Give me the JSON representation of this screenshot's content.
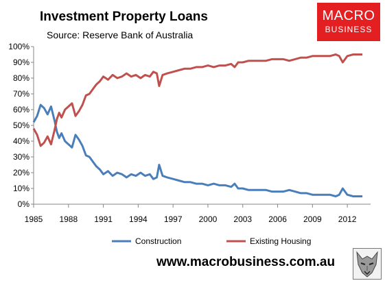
{
  "title": "Investment Property Loans",
  "subtitle": "Source: Reserve Bank of Australia",
  "logo": {
    "line1": "MACRO",
    "line2": "BUSINESS",
    "color": "#e41f22"
  },
  "website": "www.macrobusiness.com.au",
  "wolf_icon": "wolf-head-icon",
  "chart_data": {
    "type": "line",
    "xlim": [
      1985,
      2014
    ],
    "ylim": [
      0,
      100
    ],
    "x_ticks": [
      "1985",
      "1988",
      "1991",
      "1994",
      "1997",
      "2000",
      "2003",
      "2006",
      "2009",
      "2012"
    ],
    "y_ticks": [
      "0%",
      "10%",
      "20%",
      "30%",
      "40%",
      "50%",
      "60%",
      "70%",
      "80%",
      "90%",
      "100%"
    ],
    "grid": false,
    "legend": "bottom",
    "series": [
      {
        "name": "Construction",
        "color": "#4a7ebb",
        "x": [
          1985.0,
          1985.3,
          1985.6,
          1985.9,
          1986.2,
          1986.5,
          1986.8,
          1987.0,
          1987.2,
          1987.4,
          1987.7,
          1988.0,
          1988.3,
          1988.6,
          1988.9,
          1989.2,
          1989.5,
          1989.8,
          1990.1,
          1990.4,
          1990.7,
          1991.0,
          1991.4,
          1991.8,
          1992.2,
          1992.6,
          1993.0,
          1993.4,
          1993.8,
          1994.2,
          1994.6,
          1995.0,
          1995.3,
          1995.6,
          1995.8,
          1996.1,
          1996.5,
          1997.0,
          1997.5,
          1998.0,
          1998.5,
          1999.0,
          1999.5,
          2000.0,
          2000.5,
          2001.0,
          2001.5,
          2002.0,
          2002.3,
          2002.6,
          2003.0,
          2003.5,
          2004.0,
          2004.5,
          2005.0,
          2005.5,
          2006.0,
          2006.5,
          2007.0,
          2007.5,
          2008.0,
          2008.5,
          2009.0,
          2009.5,
          2010.0,
          2010.5,
          2011.0,
          2011.3,
          2011.6,
          2012.0,
          2012.5,
          2013.0,
          2013.3
        ],
        "values": [
          52,
          56,
          63,
          61,
          57,
          62,
          53,
          46,
          42,
          45,
          40,
          38,
          36,
          44,
          41,
          37,
          31,
          30,
          27,
          24,
          22,
          19,
          21,
          18,
          20,
          19,
          17,
          19,
          18,
          20,
          18,
          19,
          16,
          17,
          25,
          18,
          17,
          16,
          15,
          14,
          14,
          13,
          13,
          12,
          13,
          12,
          12,
          11,
          13,
          10,
          10,
          9,
          9,
          9,
          9,
          8,
          8,
          8,
          9,
          8,
          7,
          7,
          6,
          6,
          6,
          6,
          5,
          6,
          10,
          6,
          5,
          5,
          5
        ]
      },
      {
        "name": "Existing Housing",
        "color": "#c0504d",
        "x": [
          1985.0,
          1985.3,
          1985.6,
          1985.9,
          1986.2,
          1986.5,
          1986.8,
          1987.0,
          1987.2,
          1987.4,
          1987.7,
          1988.0,
          1988.3,
          1988.6,
          1988.9,
          1989.2,
          1989.5,
          1989.8,
          1990.1,
          1990.4,
          1990.7,
          1991.0,
          1991.4,
          1991.8,
          1992.2,
          1992.6,
          1993.0,
          1993.4,
          1993.8,
          1994.2,
          1994.6,
          1995.0,
          1995.3,
          1995.6,
          1995.8,
          1996.1,
          1996.5,
          1997.0,
          1997.5,
          1998.0,
          1998.5,
          1999.0,
          1999.5,
          2000.0,
          2000.5,
          2001.0,
          2001.5,
          2002.0,
          2002.3,
          2002.6,
          2003.0,
          2003.5,
          2004.0,
          2004.5,
          2005.0,
          2005.5,
          2006.0,
          2006.5,
          2007.0,
          2007.5,
          2008.0,
          2008.5,
          2009.0,
          2009.5,
          2010.0,
          2010.5,
          2011.0,
          2011.3,
          2011.6,
          2012.0,
          2012.5,
          2013.0,
          2013.3
        ],
        "values": [
          48,
          44,
          37,
          39,
          43,
          38,
          47,
          54,
          58,
          55,
          60,
          62,
          64,
          56,
          59,
          63,
          69,
          70,
          73,
          76,
          78,
          81,
          79,
          82,
          80,
          81,
          83,
          81,
          82,
          80,
          82,
          81,
          84,
          83,
          75,
          82,
          83,
          84,
          85,
          86,
          86,
          87,
          87,
          88,
          87,
          88,
          88,
          89,
          87,
          90,
          90,
          91,
          91,
          91,
          91,
          92,
          92,
          92,
          91,
          92,
          93,
          93,
          94,
          94,
          94,
          94,
          95,
          94,
          90,
          94,
          95,
          95,
          95
        ]
      }
    ]
  }
}
